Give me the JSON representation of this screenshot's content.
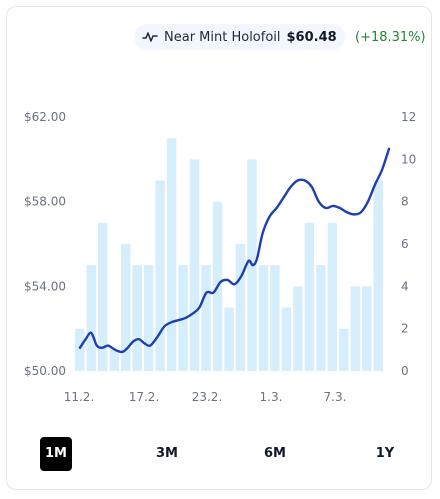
{
  "header": {
    "variant": "Near Mint Holofoil",
    "price": "$60.48",
    "change": "(+18.31%)",
    "icon": "trend-line-icon"
  },
  "colors": {
    "line": "#1e40af",
    "bars": "#d6eefc",
    "change_positive": "#22863a"
  },
  "ranges": {
    "items": [
      "1M",
      "3M",
      "6M",
      "1Y"
    ],
    "active": "1M"
  },
  "chart_data": {
    "type": "bar+line",
    "x_tick_labels": [
      "11.2.",
      "17.2.",
      "23.2.",
      "1.3.",
      "7.3."
    ],
    "y_left": {
      "ticks": [
        "$50.00",
        "$54.00",
        "$58.00",
        "$62.00"
      ],
      "range": [
        50,
        62
      ]
    },
    "y_right": {
      "ticks": [
        "0",
        "2",
        "4",
        "6",
        "8",
        "10",
        "12"
      ],
      "range": [
        0,
        12
      ]
    },
    "bar_series": {
      "axis": "right",
      "values": [
        2,
        5,
        7,
        1,
        6,
        5,
        5,
        9,
        11,
        5,
        10,
        5,
        8,
        3,
        6,
        10,
        5,
        5,
        3,
        4,
        7,
        5,
        7,
        2,
        4,
        4,
        9
      ]
    },
    "line_series": {
      "axis": "left",
      "points": [
        [
          0,
          51.1
        ],
        [
          0.4,
          51.5
        ],
        [
          0.8,
          51.8
        ],
        [
          1.2,
          51.2
        ],
        [
          1.6,
          51.1
        ],
        [
          2.0,
          51.2
        ],
        [
          2.5,
          51.0
        ],
        [
          3.0,
          50.9
        ],
        [
          3.4,
          51.1
        ],
        [
          3.8,
          51.4
        ],
        [
          4.2,
          51.5
        ],
        [
          4.6,
          51.3
        ],
        [
          5.0,
          51.2
        ],
        [
          5.5,
          51.6
        ],
        [
          6.0,
          52.1
        ],
        [
          6.5,
          52.3
        ],
        [
          7.0,
          52.4
        ],
        [
          7.5,
          52.5
        ],
        [
          8.0,
          52.7
        ],
        [
          8.5,
          53.0
        ],
        [
          9.0,
          53.7
        ],
        [
          9.5,
          53.7
        ],
        [
          10.0,
          54.2
        ],
        [
          10.5,
          54.3
        ],
        [
          11.0,
          54.1
        ],
        [
          11.5,
          54.5
        ],
        [
          12.0,
          55.2
        ],
        [
          12.3,
          55.0
        ],
        [
          12.6,
          55.3
        ],
        [
          13.0,
          56.5
        ],
        [
          13.5,
          57.3
        ],
        [
          14.0,
          57.7
        ],
        [
          14.5,
          58.2
        ],
        [
          15.0,
          58.7
        ],
        [
          15.5,
          59.0
        ],
        [
          16.0,
          59.0
        ],
        [
          16.5,
          58.7
        ],
        [
          17.0,
          58.0
        ],
        [
          17.5,
          57.7
        ],
        [
          18.0,
          57.8
        ],
        [
          18.5,
          57.7
        ],
        [
          19.0,
          57.5
        ],
        [
          19.5,
          57.4
        ],
        [
          20.0,
          57.5
        ],
        [
          20.5,
          58.0
        ],
        [
          21.0,
          58.8
        ],
        [
          21.5,
          59.5
        ],
        [
          22.0,
          60.5
        ]
      ],
      "x_range": [
        0,
        22
      ]
    }
  }
}
